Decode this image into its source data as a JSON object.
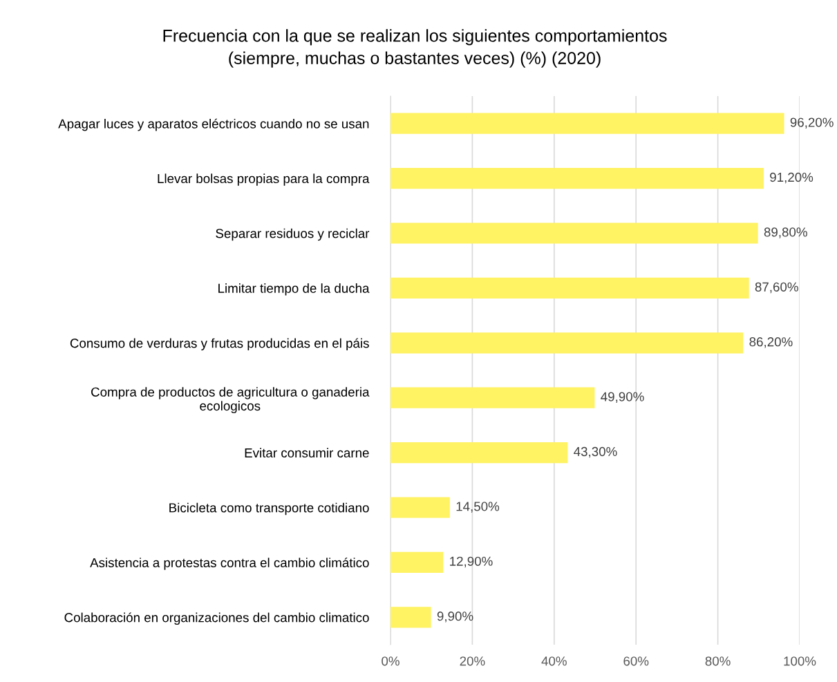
{
  "chart_data": {
    "type": "bar",
    "orientation": "horizontal",
    "title": "Frecuencia con la que se realizan los siguientes comportamientos\n(siempre, muchas o bastantes veces) (%) (2020)",
    "categories": [
      "Apagar luces y aparatos eléctricos cuando no se usan",
      "Llevar bolsas propias para la compra",
      "Separar residuos y reciclar",
      "Limitar tiempo de la ducha",
      "Consumo de verduras y frutas producidas en el páis",
      "Compra de productos de agricultura o ganaderia\necologicos",
      "Evitar consumir carne",
      "Bicicleta como transporte cotidiano",
      "Asistencia a protestas contra el cambio climático",
      "Colaboración en organizaciones del cambio climatico"
    ],
    "values": [
      96.2,
      91.2,
      89.8,
      87.6,
      86.2,
      49.9,
      43.3,
      14.5,
      12.9,
      9.9
    ],
    "value_labels": [
      "96,20%",
      "91,20%",
      "89,80%",
      "87,60%",
      "86,20%",
      "49,90%",
      "43,30%",
      "14,50%",
      "12,90%",
      "9,90%"
    ],
    "color": "#fff263",
    "xlim": [
      0,
      100
    ],
    "xticks": [
      {
        "value": 0,
        "label": "0%"
      },
      {
        "value": 20,
        "label": "20%"
      },
      {
        "value": 40,
        "label": "40%"
      },
      {
        "value": 60,
        "label": "60%"
      },
      {
        "value": 80,
        "label": "80%"
      },
      {
        "value": 100,
        "label": "100%"
      }
    ],
    "grid": "x",
    "legend": false
  }
}
